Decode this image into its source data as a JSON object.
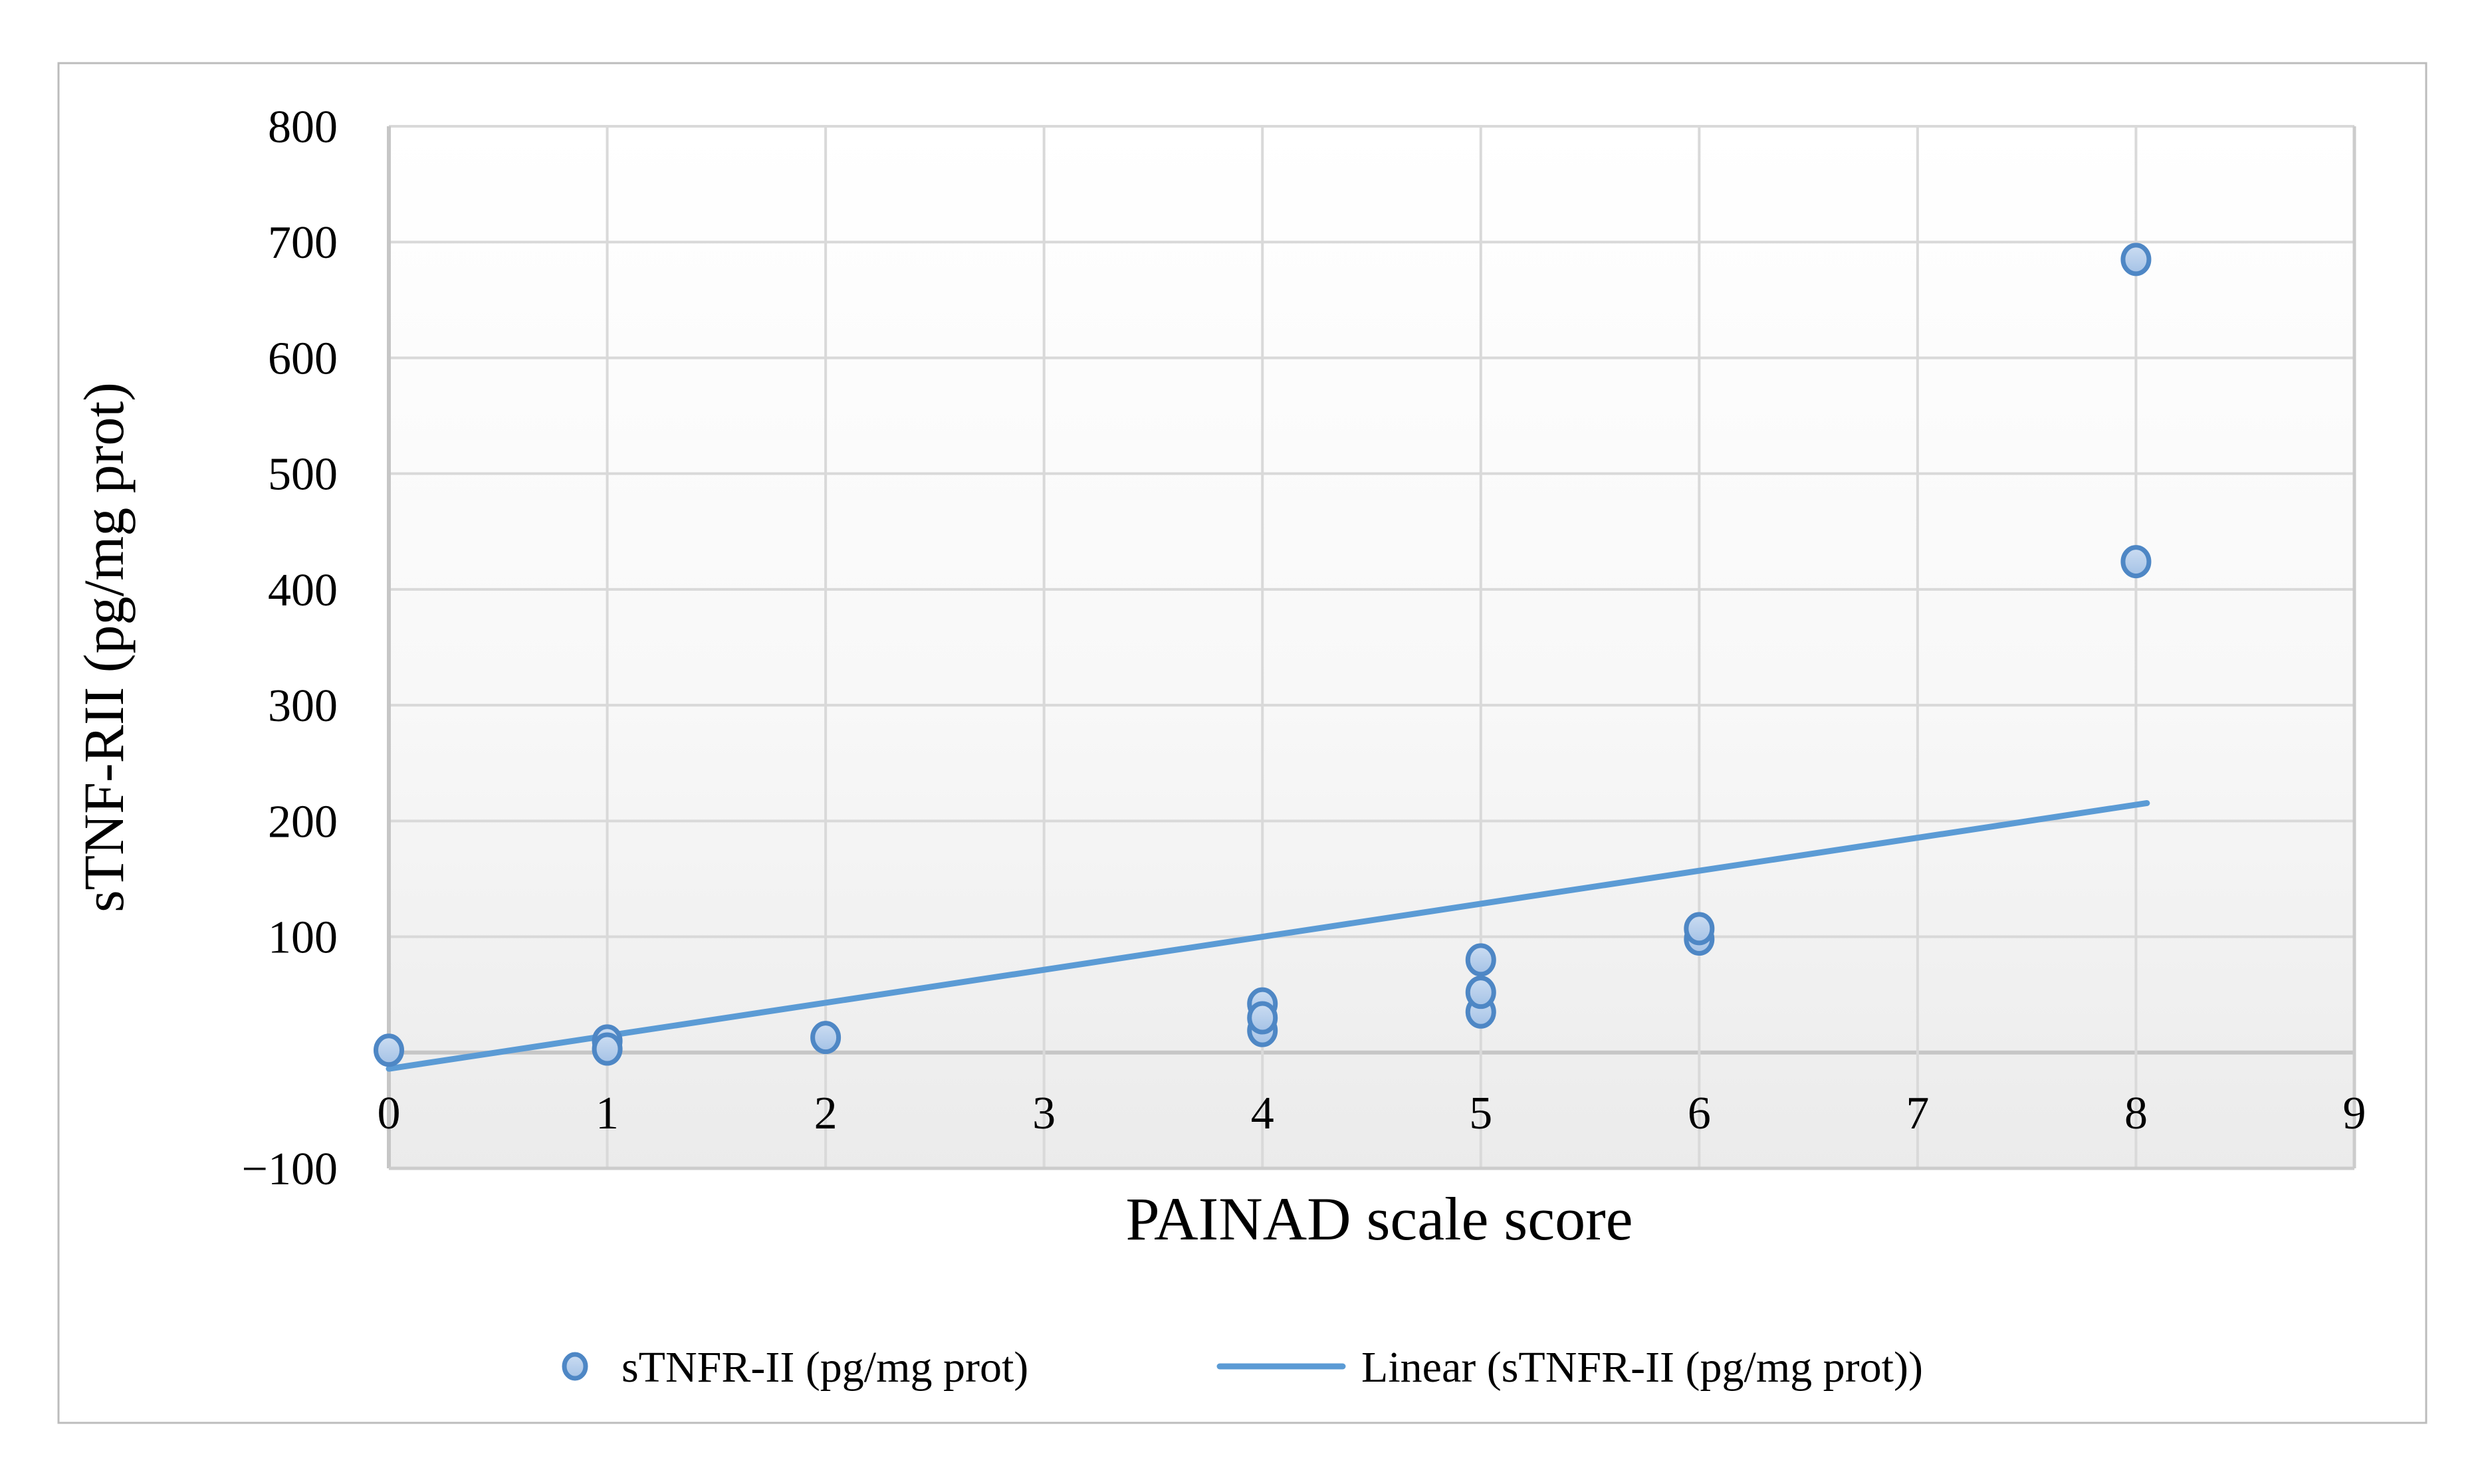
{
  "figure": {
    "background_color": "#ffffff",
    "border_color": "#bcbcbc"
  },
  "chart_data": {
    "type": "scatter",
    "title": "",
    "xlabel": "PAINAD scale score",
    "ylabel": "sTNF-RII (pg/mg prot)",
    "xlim": [
      0,
      9
    ],
    "ylim": [
      -100,
      800
    ],
    "grid": true,
    "x_ticks": [
      {
        "value": 0,
        "label": "0"
      },
      {
        "value": 1,
        "label": "1"
      },
      {
        "value": 2,
        "label": "2"
      },
      {
        "value": 3,
        "label": "3"
      },
      {
        "value": 4,
        "label": "4"
      },
      {
        "value": 5,
        "label": "5"
      },
      {
        "value": 6,
        "label": "6"
      },
      {
        "value": 7,
        "label": "7"
      },
      {
        "value": 8,
        "label": "8"
      },
      {
        "value": 9,
        "label": "9"
      }
    ],
    "y_gridlines": [
      -100,
      0,
      100,
      200,
      300,
      400,
      500,
      600,
      700,
      800
    ],
    "y_tick_labels": [
      {
        "value": 800,
        "label": "800"
      },
      {
        "value": 700,
        "label": "700"
      },
      {
        "value": 600,
        "label": "600"
      },
      {
        "value": 500,
        "label": "500"
      },
      {
        "value": 400,
        "label": "400"
      },
      {
        "value": 300,
        "label": "300"
      },
      {
        "value": 200,
        "label": "200"
      },
      {
        "value": 100,
        "label": "100"
      },
      {
        "value": -100,
        "label": "−100"
      }
    ],
    "series": [
      {
        "name": "sTNFR-II (pg/mg prot)",
        "points": [
          [
            0,
            2
          ],
          [
            1,
            10
          ],
          [
            1,
            3
          ],
          [
            2,
            13
          ],
          [
            4,
            42
          ],
          [
            4,
            19
          ],
          [
            4,
            30
          ],
          [
            5,
            80
          ],
          [
            5,
            35
          ],
          [
            5,
            52
          ],
          [
            6,
            98
          ],
          [
            6,
            107
          ],
          [
            8,
            685
          ],
          [
            8,
            424
          ]
        ]
      }
    ],
    "trendline": {
      "name": "Linear (sTNFR-II (pg/mg prot))",
      "slope": 28.5,
      "intercept": -14,
      "x_start": 0,
      "x_end": 8.05
    },
    "legend": {
      "position": "bottom",
      "scatter_label": "sTNFR-II (pg/mg prot)",
      "line_label": "Linear (sTNFR-II (pg/mg prot))"
    },
    "colors": {
      "marker_stroke": "#4e87c5",
      "marker_fill_light": "#ccddf2",
      "marker_fill_dark": "#a4c2e6",
      "trendline": "#5b9bd5",
      "gridline": "#d9d9d9",
      "text": "#000000"
    }
  }
}
